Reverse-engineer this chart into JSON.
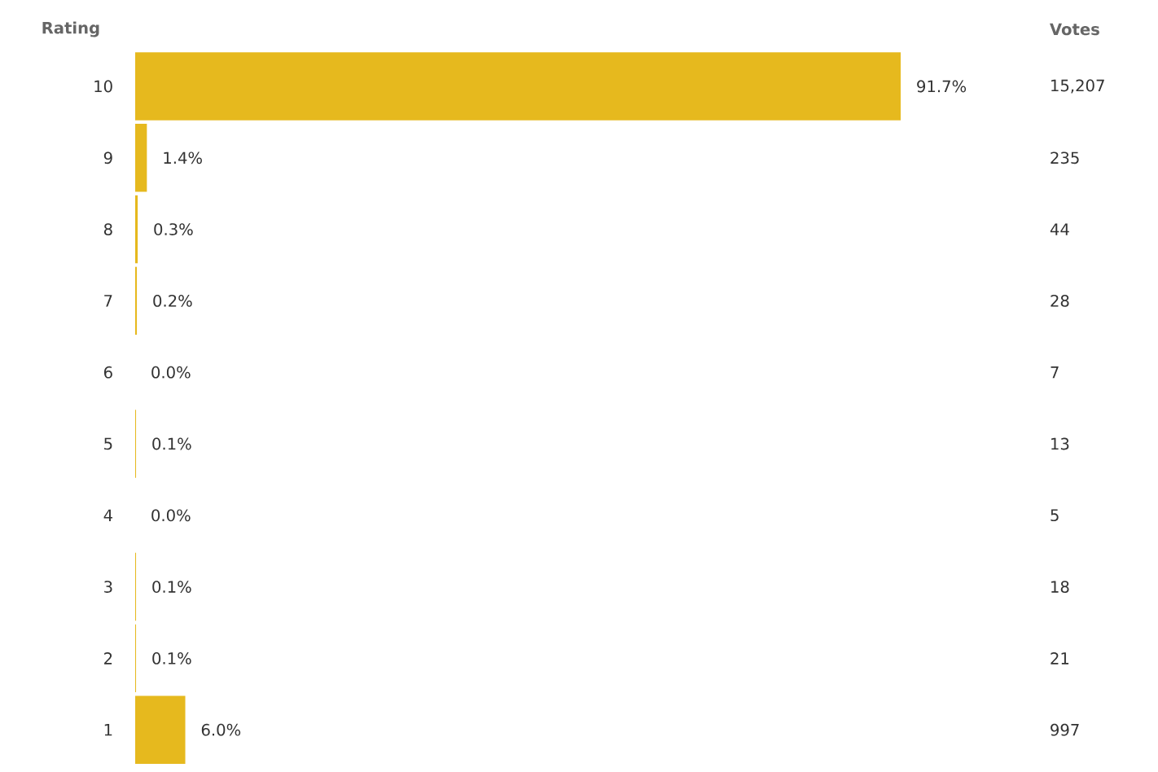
{
  "chart_data": {
    "type": "bar",
    "orientation": "horizontal",
    "ylabel": "Rating",
    "categories": [
      "10",
      "9",
      "8",
      "7",
      "6",
      "5",
      "4",
      "3",
      "2",
      "1"
    ],
    "values": [
      91.7,
      1.4,
      0.3,
      0.2,
      0.0,
      0.1,
      0.0,
      0.1,
      0.1,
      6.0
    ],
    "value_labels": [
      "91.7%",
      "1.4%",
      "0.3%",
      "0.2%",
      "0.0%",
      "0.1%",
      "0.0%",
      "0.1%",
      "0.1%",
      "6.0%"
    ],
    "color": "#e6b91e",
    "annotations": [
      "Votes",
      "15,207",
      "235",
      "44",
      "28",
      "7",
      "13",
      "5",
      "18",
      "21",
      "997"
    ]
  }
}
